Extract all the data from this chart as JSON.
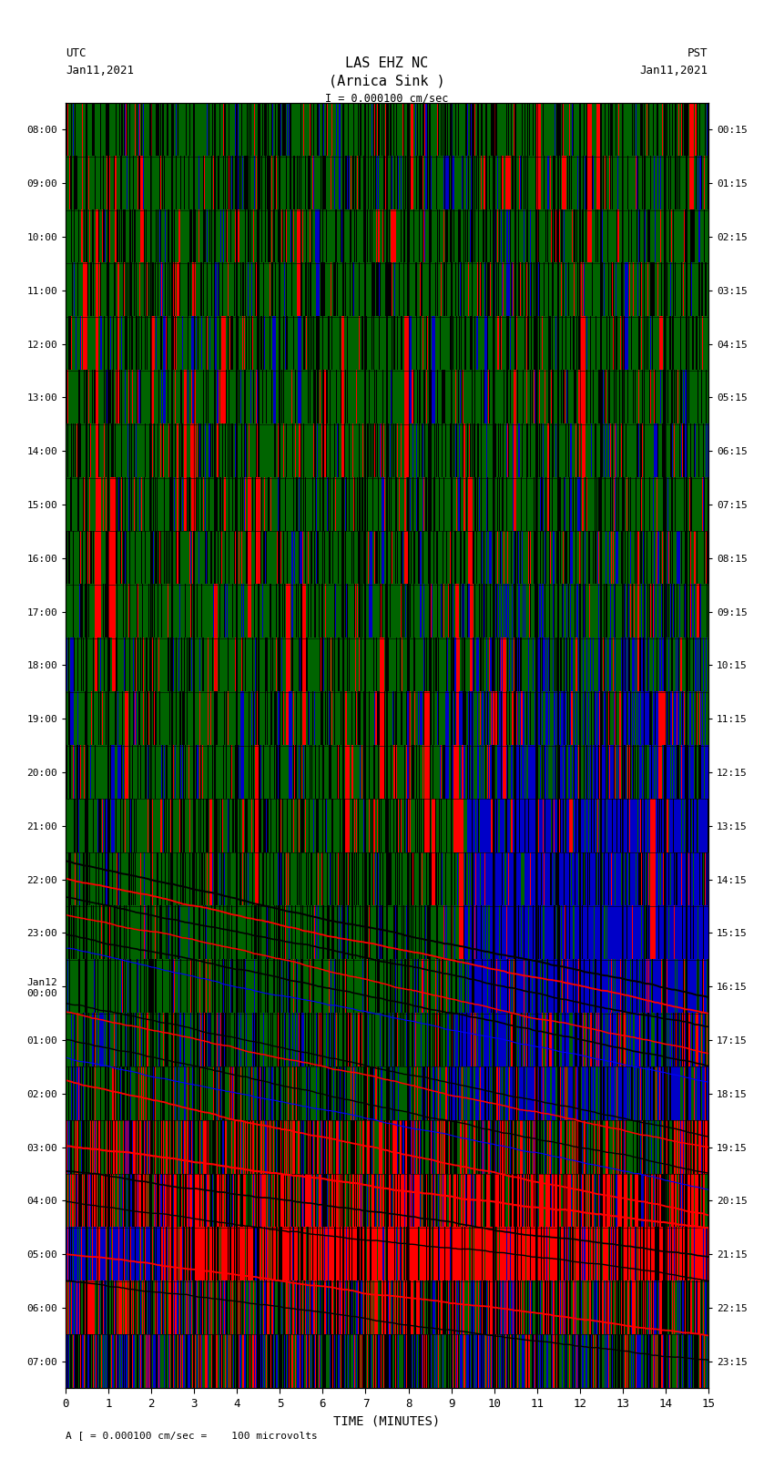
{
  "title_line1": "LAS EHZ NC",
  "title_line2": "(Arnica Sink )",
  "scale_label": "I = 0.000100 cm/sec",
  "footer_label": "A [ = 0.000100 cm/sec =    100 microvolts",
  "utc_label": "UTC",
  "utc_date": "Jan11,2021",
  "pst_label": "PST",
  "pst_date": "Jan11,2021",
  "xlabel": "TIME (MINUTES)",
  "xlim": [
    0,
    15
  ],
  "xticks": [
    0,
    1,
    2,
    3,
    4,
    5,
    6,
    7,
    8,
    9,
    10,
    11,
    12,
    13,
    14,
    15
  ],
  "ytick_labels_left": [
    "08:00",
    "09:00",
    "10:00",
    "11:00",
    "12:00",
    "13:00",
    "14:00",
    "15:00",
    "16:00",
    "17:00",
    "18:00",
    "19:00",
    "20:00",
    "21:00",
    "22:00",
    "23:00",
    "Jan12\n00:00",
    "01:00",
    "02:00",
    "03:00",
    "04:00",
    "05:00",
    "06:00",
    "07:00"
  ],
  "ytick_labels_right": [
    "00:15",
    "01:15",
    "02:15",
    "03:15",
    "04:15",
    "05:15",
    "06:15",
    "07:15",
    "08:15",
    "09:15",
    "10:15",
    "11:15",
    "12:15",
    "13:15",
    "14:15",
    "15:15",
    "16:15",
    "17:15",
    "18:15",
    "19:15",
    "20:15",
    "21:15",
    "22:15",
    "23:15"
  ],
  "n_rows": 24,
  "fig_bg_color": "#ffffff",
  "green_color": "#006400",
  "blue_color": "#0000cc",
  "red_color": "#ff0000",
  "figsize": [
    8.5,
    16.13
  ],
  "dpi": 100
}
